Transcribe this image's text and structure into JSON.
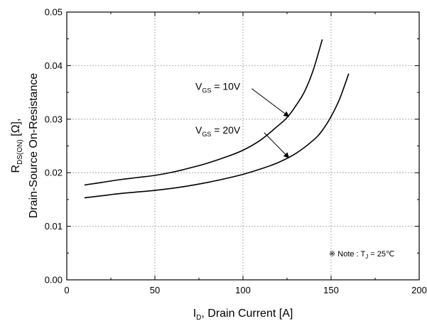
{
  "chart_data": {
    "type": "line",
    "x_label": {
      "main": "I",
      "sub": "D",
      "rest": ", Drain Current [A]"
    },
    "y_label": {
      "line1_main": "R",
      "line1_sub": "DS(ON)",
      "line1_rest": " [Ω],",
      "line2": "Drain-Source On-Resistance"
    },
    "xlim": [
      0,
      200
    ],
    "ylim": [
      0.0,
      0.05
    ],
    "x_ticks": [
      0,
      50,
      100,
      150,
      200
    ],
    "x_tick_labels": [
      "0",
      "50",
      "100",
      "150",
      "200"
    ],
    "y_ticks": [
      0.0,
      0.01,
      0.02,
      0.03,
      0.04,
      0.05
    ],
    "y_tick_labels": [
      "0.00",
      "0.01",
      "0.02",
      "0.03",
      "0.04",
      "0.05"
    ],
    "grid": true,
    "series": [
      {
        "label": {
          "main": "V",
          "sub": "GS",
          "rest": " = 10V"
        },
        "x": [
          10,
          20,
          30,
          40,
          50,
          60,
          70,
          80,
          90,
          100,
          110,
          120,
          125,
          130,
          135,
          140,
          145
        ],
        "y": [
          0.0177,
          0.0182,
          0.0187,
          0.0191,
          0.0195,
          0.0201,
          0.0209,
          0.0218,
          0.0229,
          0.0242,
          0.0261,
          0.0288,
          0.0303,
          0.0325,
          0.0352,
          0.0393,
          0.0449
        ]
      },
      {
        "label": {
          "main": "V",
          "sub": "GS",
          "rest": " = 20V"
        },
        "x": [
          10,
          20,
          30,
          40,
          50,
          60,
          70,
          80,
          90,
          100,
          110,
          120,
          130,
          140,
          145,
          150,
          155,
          160
        ],
        "y": [
          0.0153,
          0.0157,
          0.0161,
          0.0164,
          0.0167,
          0.0171,
          0.0176,
          0.0182,
          0.0189,
          0.0197,
          0.0207,
          0.0219,
          0.0236,
          0.0261,
          0.0279,
          0.0305,
          0.0339,
          0.0385
        ]
      }
    ],
    "annotations": [
      {
        "series": 0,
        "text": {
          "main": "V",
          "sub": "GS",
          "rest": " = 10V"
        },
        "text_at": [
          73,
          0.0355
        ],
        "arrow_from": [
          105,
          0.0357
        ],
        "arrow_to": [
          126,
          0.0305
        ]
      },
      {
        "series": 1,
        "text": {
          "main": "V",
          "sub": "GS",
          "rest": " = 20V"
        },
        "text_at": [
          73,
          0.0273
        ],
        "arrow_from": [
          112,
          0.0275
        ],
        "arrow_to": [
          126,
          0.0228
        ]
      }
    ],
    "note": {
      "symbol": "※",
      "text_before": " Note : T",
      "sub": "J",
      "text_after": " = 25℃"
    }
  }
}
